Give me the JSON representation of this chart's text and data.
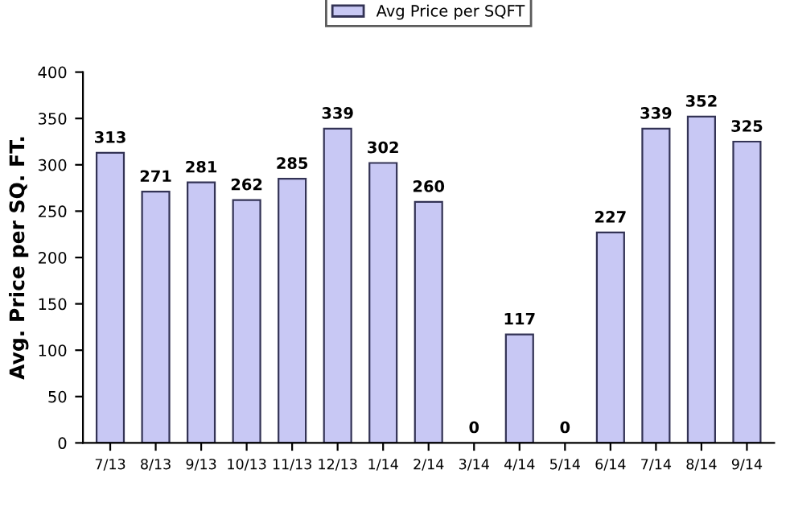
{
  "chart_data": {
    "type": "bar",
    "ylabel": "Avg. Price per SQ. FT.",
    "categories": [
      "7/13",
      "8/13",
      "9/13",
      "10/13",
      "11/13",
      "12/13",
      "1/14",
      "2/14",
      "3/14",
      "4/14",
      "5/14",
      "6/14",
      "7/14",
      "8/14",
      "9/14"
    ],
    "series": [
      {
        "name": "Avg Price per SQFT",
        "color": "#c8c8f4",
        "values": [
          313,
          271,
          281,
          262,
          285,
          339,
          302,
          260,
          0,
          117,
          0,
          227,
          339,
          352,
          325
        ]
      }
    ],
    "ylim": [
      0,
      400
    ],
    "yticks": [
      0,
      50,
      100,
      150,
      200,
      250,
      300,
      350,
      400
    ],
    "data_labels": true,
    "legend": "top",
    "grid": false
  }
}
